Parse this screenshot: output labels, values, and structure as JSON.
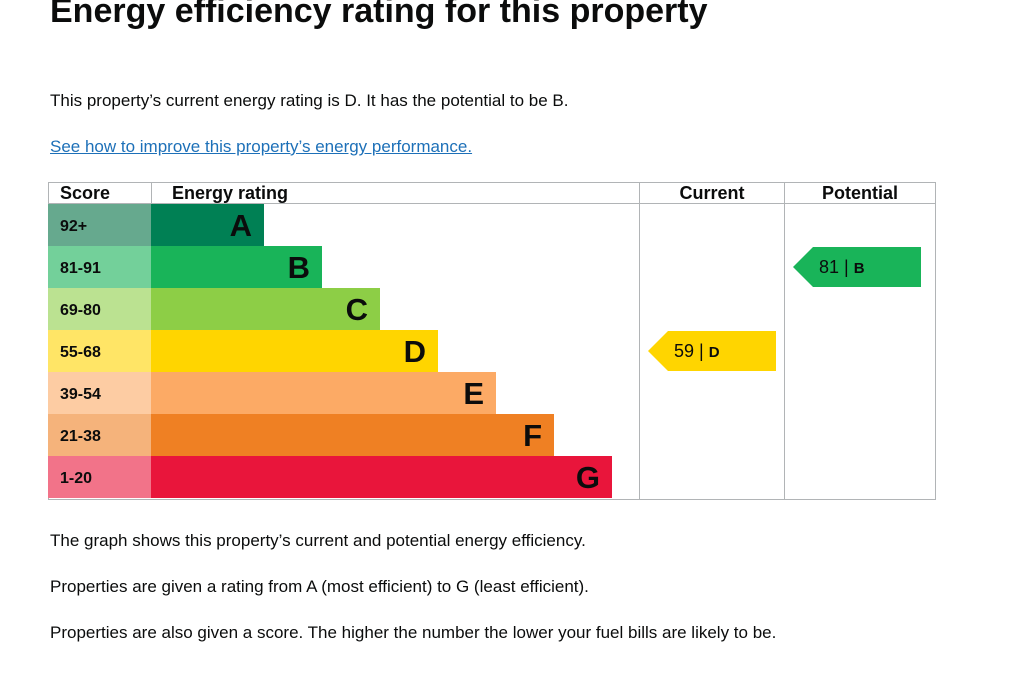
{
  "page": {
    "heading": "Energy efficiency rating for this property",
    "intro": "This property’s current energy rating is D. It has the potential to be B.",
    "link_text": "See how to improve this property’s energy performance.",
    "para1": "The graph shows this property’s current and potential energy efficiency.",
    "para2": "Properties are given a rating from A (most efficient) to G (least efficient).",
    "para3": "Properties are also given a score. The higher the number the lower your fuel bills are likely to be."
  },
  "chart_data": {
    "type": "table",
    "columns": [
      "Score",
      "Energy rating",
      "Current",
      "Potential"
    ],
    "bands": [
      {
        "score": "92+",
        "letter": "A",
        "color": "#008054",
        "score_bg": "#66a98e"
      },
      {
        "score": "81-91",
        "letter": "B",
        "color": "#19b459",
        "score_bg": "#73d09a"
      },
      {
        "score": "69-80",
        "letter": "C",
        "color": "#8dce46",
        "score_bg": "#bbe291"
      },
      {
        "score": "55-68",
        "letter": "D",
        "color": "#ffd500",
        "score_bg": "#ffe566"
      },
      {
        "score": "39-54",
        "letter": "E",
        "color": "#fcaa65",
        "score_bg": "#fdcca3"
      },
      {
        "score": "21-38",
        "letter": "F",
        "color": "#ef8023",
        "score_bg": "#f5b37b"
      },
      {
        "score": "1-20",
        "letter": "G",
        "color": "#e9153b",
        "score_bg": "#f27389"
      }
    ],
    "current": {
      "score": 59,
      "letter": "D",
      "color": "#ffd500"
    },
    "potential": {
      "score": 81,
      "letter": "B",
      "color": "#19b459"
    }
  }
}
